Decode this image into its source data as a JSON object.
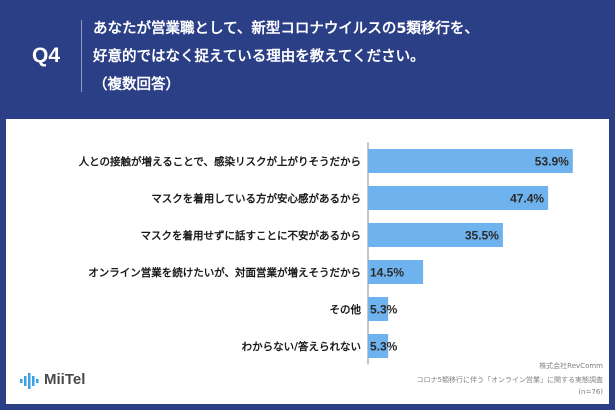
{
  "header": {
    "question_number": "Q4",
    "question_lines": [
      "あなたが営業職として、新型コロナウイルスの5類移行を、",
      "好意的ではなく捉えている理由を教えてください。",
      "（複数回答）"
    ]
  },
  "chart_data": {
    "type": "bar",
    "orientation": "horizontal",
    "categories": [
      "人との接触が増えることで、感染リスクが上がりそうだから",
      "マスクを着用している方が安心感があるから",
      "マスクを着用せずに話すことに不安があるから",
      "オンライン営業を続けたいが、対面営業が増えそうだから",
      "その他",
      "わからない/答えられない"
    ],
    "values": [
      53.9,
      47.4,
      35.5,
      14.5,
      5.3,
      5.3
    ],
    "value_labels": [
      "53.9%",
      "47.4%",
      "35.5%",
      "14.5%",
      "5.3%",
      "5.3%"
    ],
    "bar_color": "#6fb3ee",
    "xlim": [
      0,
      60
    ],
    "grid": false
  },
  "footer": {
    "logo_text": "MiiTel",
    "source_lines": [
      "株式会社RevComm",
      "コロナ5類移行に伴う「オンライン営業」に関する実態調査",
      "(n=76)"
    ]
  },
  "colors": {
    "background": "#2b3f86",
    "panel": "#ffffff",
    "bar": "#6fb3ee",
    "axis": "#888888"
  }
}
